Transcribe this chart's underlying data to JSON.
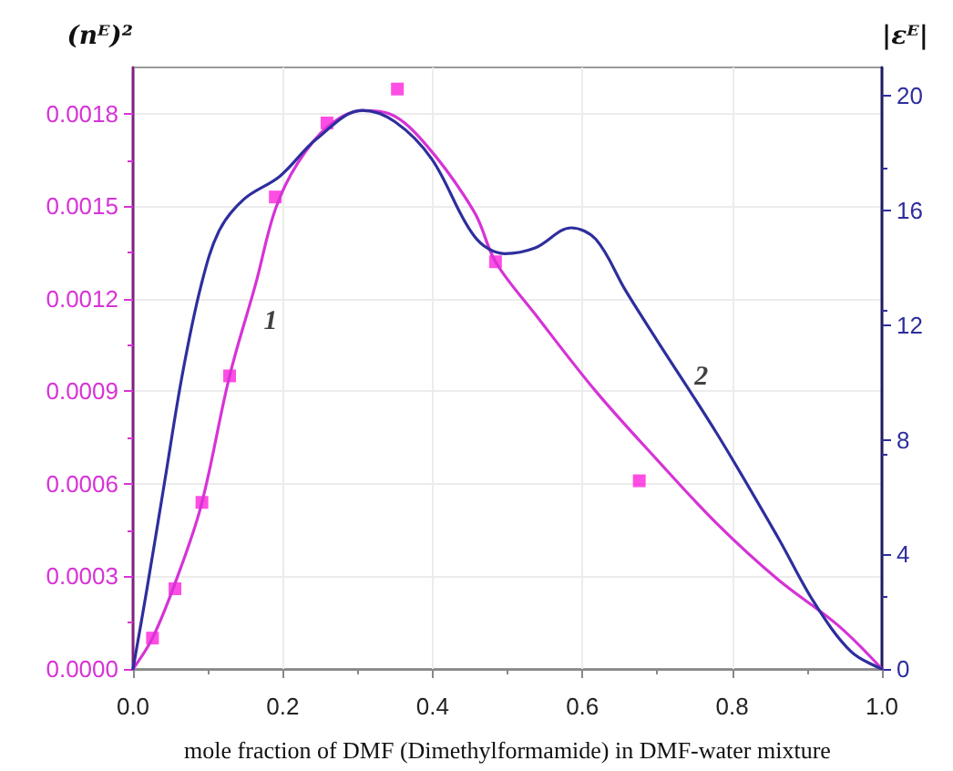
{
  "chart_data": {
    "type": "line",
    "xlabel": "mole fraction of DMF (Dimethylformamide) in DMF-water mixture",
    "ylabel": "(nᴱ)²",
    "y2label": "|εᴱ|",
    "xlim": [
      0,
      1
    ],
    "xticks": [
      {
        "value": 0,
        "label": "0.0"
      },
      {
        "value": 0.2,
        "label": "0.2"
      },
      {
        "value": 0.4,
        "label": "0.4"
      },
      {
        "value": 0.6,
        "label": "0.6"
      },
      {
        "value": 0.8,
        "label": "0.8"
      },
      {
        "value": 1,
        "label": "1.0"
      }
    ],
    "ylim": [
      0,
      0.00195
    ],
    "yticks": [
      {
        "value": 0,
        "label": "0.0000"
      },
      {
        "value": 0.0003,
        "label": "0.0003"
      },
      {
        "value": 0.0006,
        "label": "0.0006"
      },
      {
        "value": 0.0009,
        "label": "0.0009"
      },
      {
        "value": 0.0012,
        "label": "0.0012"
      },
      {
        "value": 0.0015,
        "label": "0.0015"
      },
      {
        "value": 0.0018,
        "label": "0.0018"
      }
    ],
    "y2lim": [
      0,
      21
    ],
    "y2ticks": [
      0,
      4,
      8,
      12,
      16,
      20
    ],
    "grid": true,
    "series": [
      {
        "color": "#d633d6",
        "marker": "none",
        "x": [
          0,
          0.026,
          0.058,
          0.091,
          0.129,
          0.164,
          0.19,
          0.22,
          0.261,
          0.306,
          0.342,
          0.391,
          0.456,
          0.484,
          0.537,
          0.618,
          0.699,
          0.78,
          0.861,
          0.942,
          1
        ],
        "values": [
          0,
          0.0001,
          0.00029,
          0.00053,
          0.00095,
          0.00125,
          0.00149,
          0.00164,
          0.00176,
          0.00181,
          0.0018,
          0.0017,
          0.00148,
          0.00132,
          0.00115,
          0.0009,
          0.00068,
          0.00047,
          0.00029,
          0.00014,
          0
        ]
      },
      {
        "type": "scatter",
        "color": "#ff22dd",
        "marker": "square",
        "x": [
          0.026,
          0.056,
          0.092,
          0.129,
          0.19,
          0.259,
          0.353,
          0.484,
          0.676
        ],
        "values": [
          0.0001,
          0.00026,
          0.00054,
          0.00095,
          0.00153,
          0.00177,
          0.00188,
          0.00132,
          0.00061
        ]
      },
      {
        "color": "#2e2e9e",
        "marker": "none",
        "axis": "y2",
        "x": [
          0,
          0.018,
          0.042,
          0.066,
          0.091,
          0.115,
          0.148,
          0.196,
          0.245,
          0.306,
          0.35,
          0.399,
          0.456,
          0.496,
          0.537,
          0.585,
          0.618,
          0.658,
          0.699,
          0.78,
          0.861,
          0.91,
          0.959,
          1
        ],
        "values": [
          0,
          2.7,
          6.5,
          10.3,
          13.4,
          15.3,
          16.4,
          17.2,
          18.5,
          19.5,
          19.1,
          17.8,
          15.1,
          14.5,
          14.7,
          15.4,
          15,
          13.2,
          11.5,
          8.2,
          4.6,
          2.3,
          0.6,
          0
        ]
      }
    ],
    "annotations": [
      {
        "text": "1",
        "x": 0.16,
        "y": 0.00111
      },
      {
        "text": "2",
        "x": 0.735,
        "y": 0.00093
      }
    ]
  }
}
